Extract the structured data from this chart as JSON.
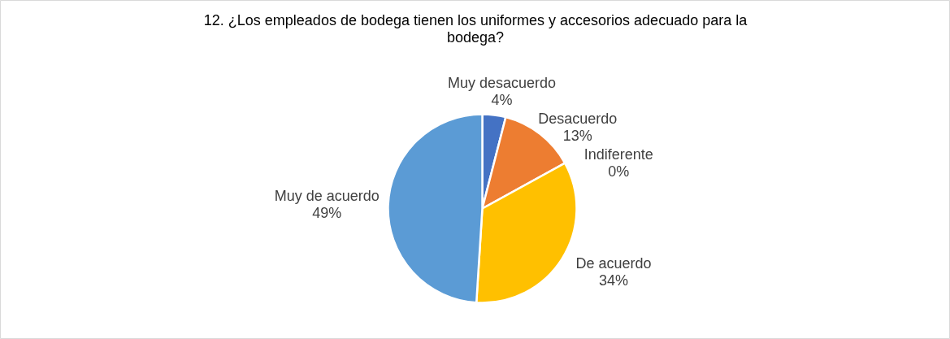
{
  "chart_data": {
    "type": "pie",
    "title": "12. ¿Los empleados de bodega tienen los uniformes y accesorios adecuado para la bodega?",
    "categories": [
      "Muy desacuerdo",
      "Desacuerdo",
      "Indiferente",
      "De acuerdo",
      "Muy de acuerdo"
    ],
    "values": [
      4,
      13,
      0,
      34,
      49
    ],
    "colors": [
      "#4472c4",
      "#ed7d31",
      "#a5a5a5",
      "#ffc000",
      "#5b9bd5"
    ],
    "value_labels": [
      "4%",
      "13%",
      "0%",
      "34%",
      "49%"
    ],
    "legend": false
  }
}
